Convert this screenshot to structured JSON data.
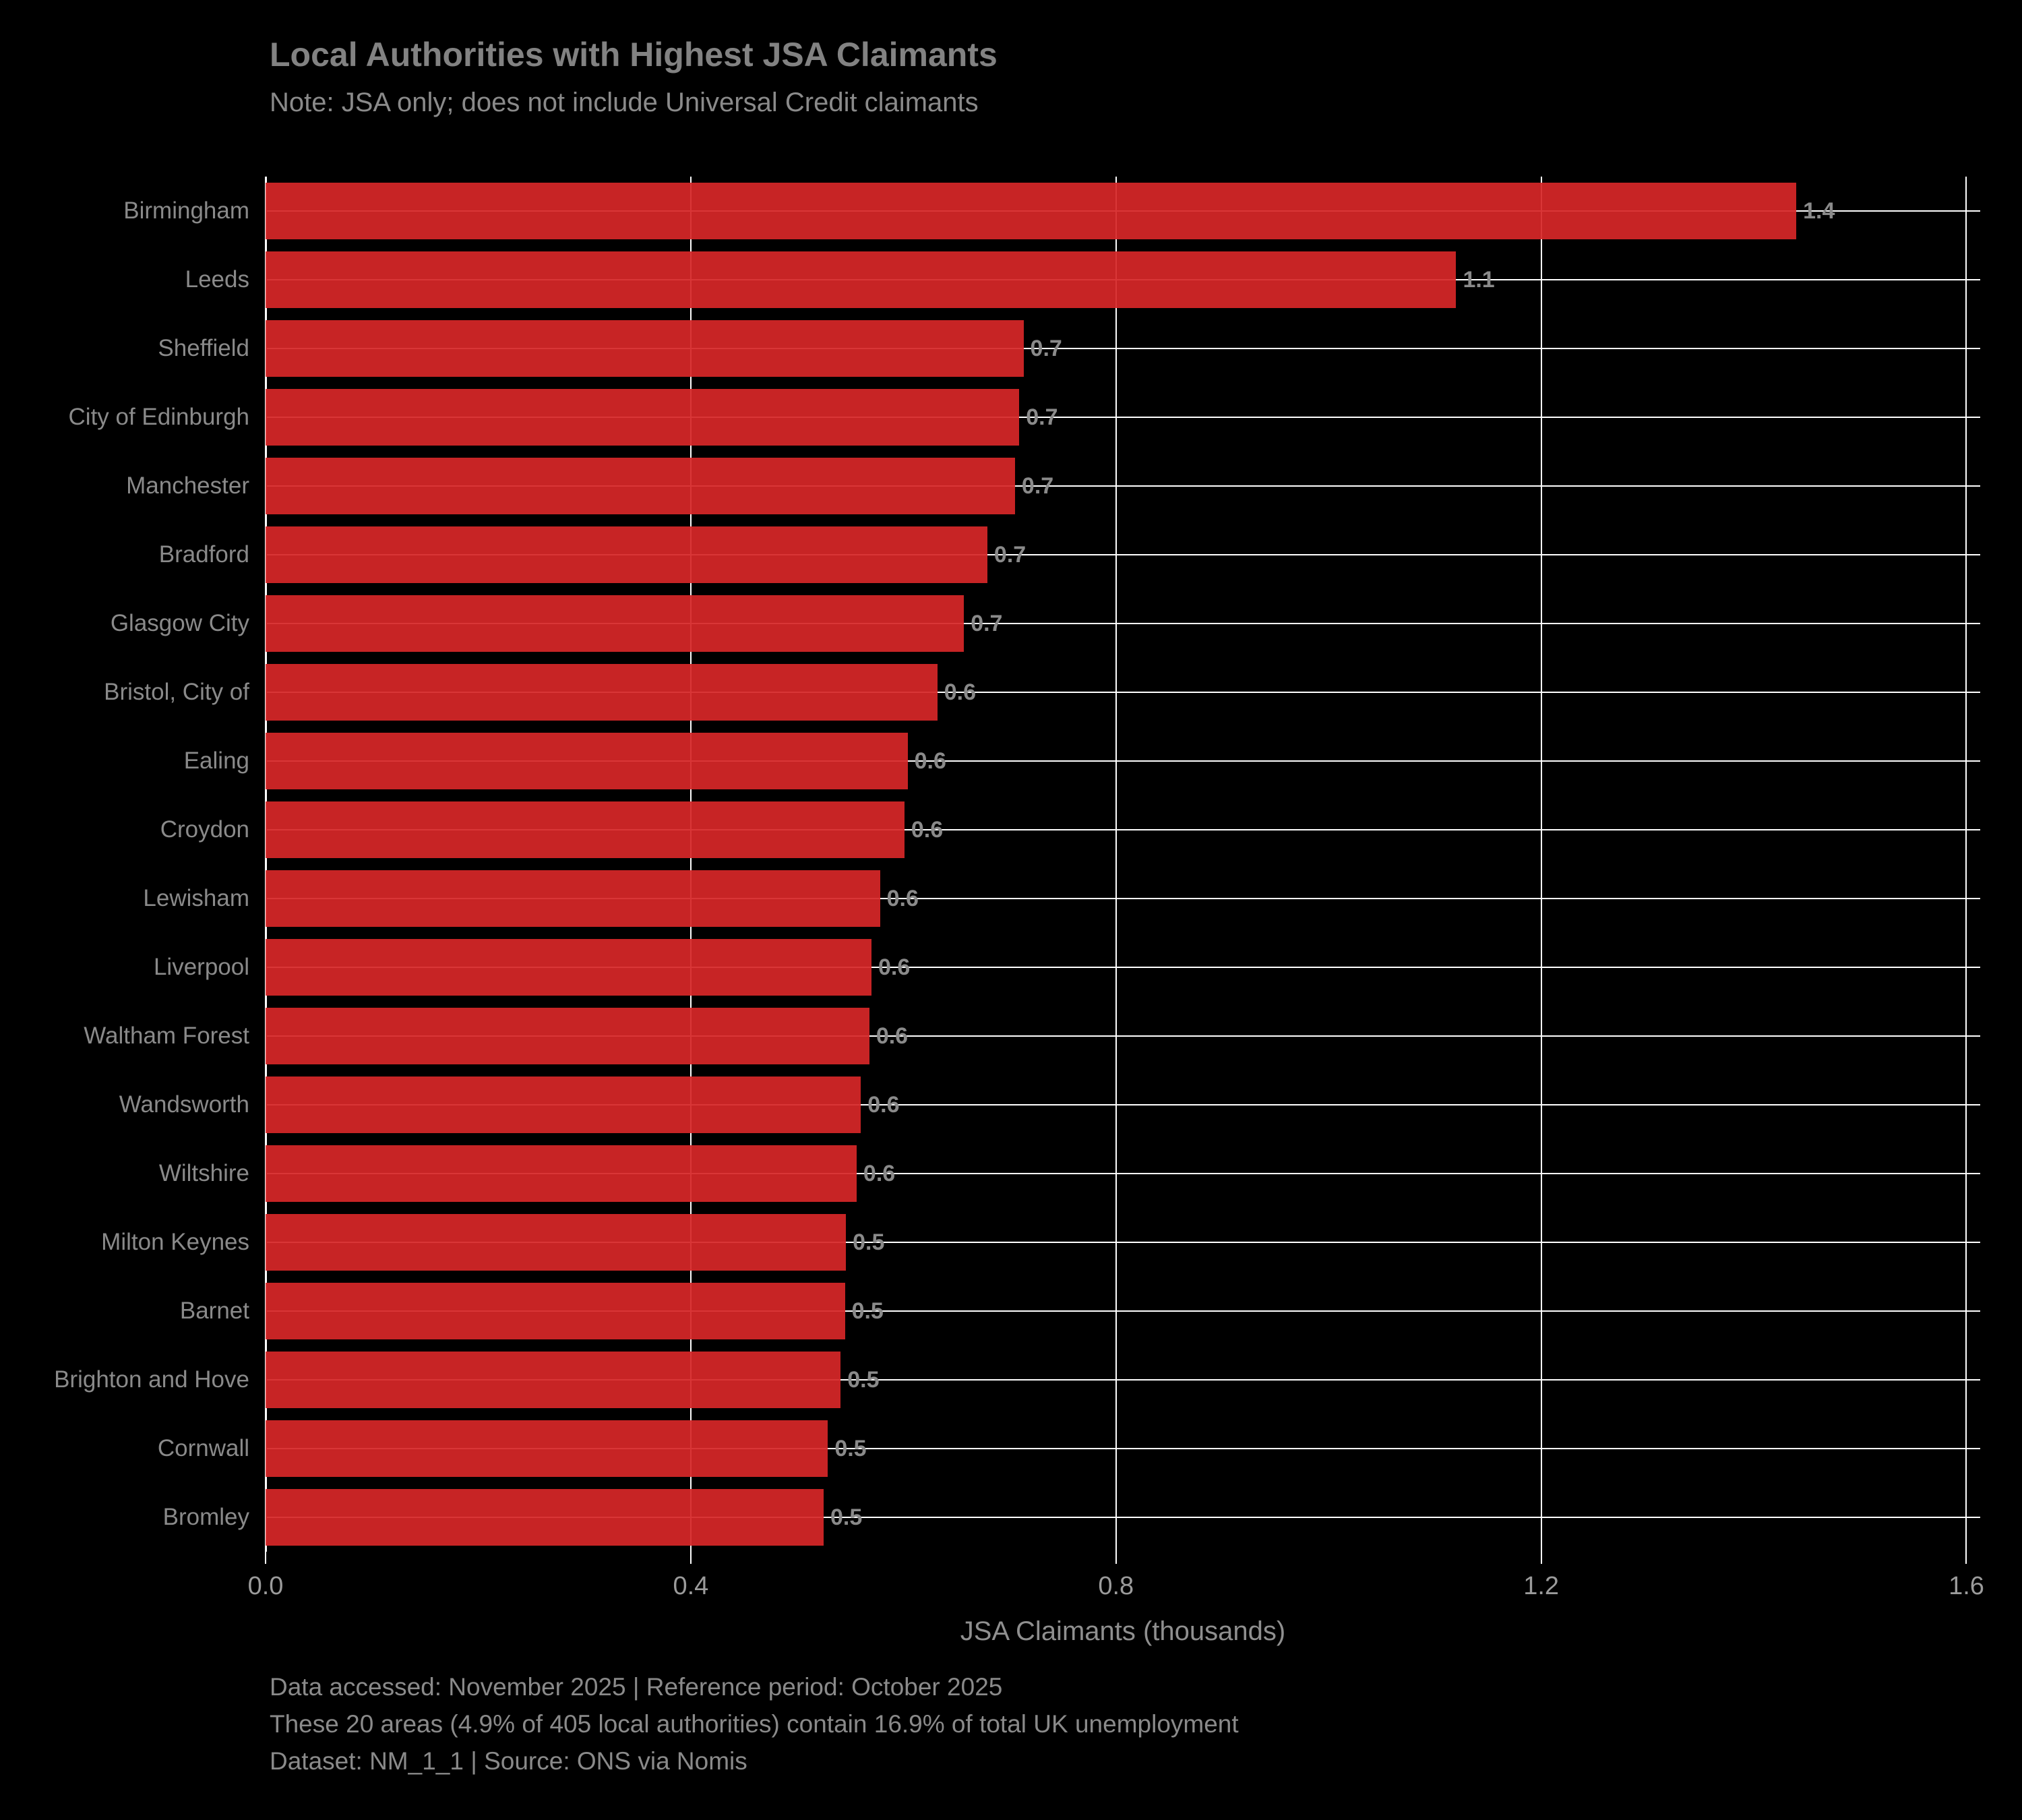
{
  "title": "Local Authorities with Highest JSA Claimants",
  "subtitle": "Note: JSA only; does not include Universal Credit claimants",
  "chart_data": {
    "type": "bar",
    "orientation": "horizontal",
    "title": "Local Authorities with Highest JSA Claimants",
    "subtitle": "Note: JSA only; does not include Universal Credit claimants",
    "categories": [
      "Birmingham",
      "Leeds",
      "Sheffield",
      "City of Edinburgh",
      "Manchester",
      "Bradford",
      "Glasgow City",
      "Bristol, City of",
      "Ealing",
      "Croydon",
      "Lewisham",
      "Liverpool",
      "Waltham Forest",
      "Wandsworth",
      "Wiltshire",
      "Milton Keynes",
      "Barnet",
      "Brighton and Hove",
      "Cornwall",
      "Bromley"
    ],
    "values": [
      1.44,
      1.12,
      0.713,
      0.709,
      0.705,
      0.679,
      0.657,
      0.632,
      0.604,
      0.601,
      0.578,
      0.57,
      0.568,
      0.56,
      0.556,
      0.546,
      0.545,
      0.541,
      0.529,
      0.525
    ],
    "bar_labels": [
      "1.4",
      "1.1",
      "0.7",
      "0.7",
      "0.7",
      "0.7",
      "0.7",
      "0.6",
      "0.6",
      "0.6",
      "0.6",
      "0.6",
      "0.6",
      "0.6",
      "0.6",
      "0.5",
      "0.5",
      "0.5",
      "0.5",
      "0.5"
    ],
    "xlabel": "JSA Claimants (thousands)",
    "ylabel": "",
    "xlim": [
      0,
      1.613
    ],
    "xticks": [
      0.0,
      0.4,
      0.8,
      1.2,
      1.6
    ],
    "xtick_labels": [
      "0.0",
      "0.4",
      "0.8",
      "1.2",
      "1.6"
    ],
    "grid": true,
    "legend": false,
    "bar_color": "#d62728",
    "background_color": "#000000",
    "gridline_color": "#ffffff",
    "text_color": "#8a8a8a"
  },
  "footer": {
    "line1": "Data accessed: November 2025 | Reference period: October 2025",
    "line2": "These 20 areas (4.9% of 405 local authorities) contain 16.9% of total UK unemployment",
    "line3": "Dataset: NM_1_1 | Source: ONS via Nomis"
  }
}
